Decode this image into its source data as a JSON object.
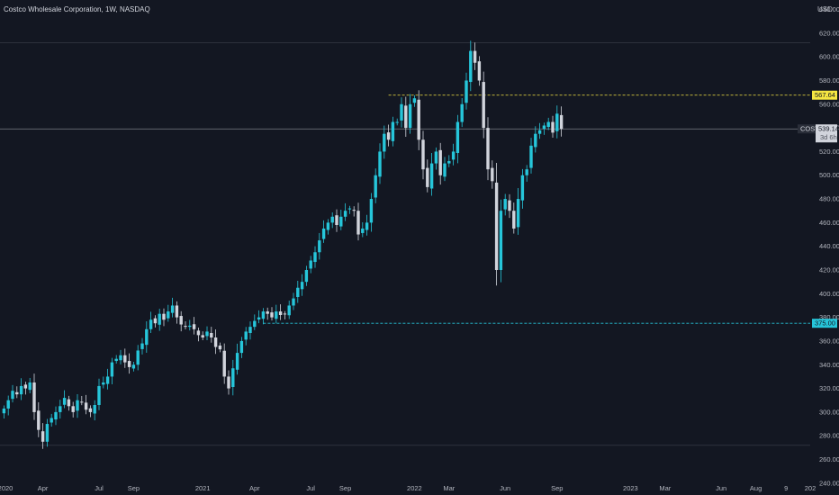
{
  "header": {
    "title": "Costco Wholesale Corporation, 1W, NASDAQ",
    "currency": "USD"
  },
  "colors": {
    "background": "#131722",
    "up": "#26c6da",
    "down": "#d1d4dc",
    "resistance": "#f5e642",
    "support": "#26c6da",
    "text": "#b2b5be",
    "grid_line": "#363a45"
  },
  "price_labels": {
    "resistance": "567.64",
    "support": "375.00",
    "symbol": "COST",
    "last": "539.14",
    "countdown": "3d 6h"
  },
  "chart_data": {
    "type": "candlestick",
    "title": "Costco Wholesale Corporation, 1W, NASDAQ",
    "ylabel": "USD",
    "ylim": [
      230,
      648
    ],
    "y_ticks": [
      240,
      260,
      280,
      300,
      320,
      340,
      360,
      380,
      400,
      420,
      440,
      460,
      480,
      500,
      520,
      540,
      560,
      580,
      600,
      620,
      640
    ],
    "x_ticks": [
      {
        "label": "2020",
        "week": 0
      },
      {
        "label": "Apr",
        "week": 9
      },
      {
        "label": "Jul",
        "week": 22
      },
      {
        "label": "Sep",
        "week": 30
      },
      {
        "label": "2021",
        "week": 46
      },
      {
        "label": "Apr",
        "week": 58
      },
      {
        "label": "Jul",
        "week": 71
      },
      {
        "label": "Sep",
        "week": 79
      },
      {
        "label": "2022",
        "week": 95
      },
      {
        "label": "Mar",
        "week": 103
      },
      {
        "label": "Jun",
        "week": 116
      },
      {
        "label": "Sep",
        "week": 128
      },
      {
        "label": "2023",
        "week": 145
      },
      {
        "label": "Mar",
        "week": 153
      },
      {
        "label": "Jun",
        "week": 166
      },
      {
        "label": "Aug",
        "week": 174
      },
      {
        "label": "9",
        "week": 181
      },
      {
        "label": "202",
        "week": 193
      }
    ],
    "horizontal_lines": [
      {
        "price": 567.64,
        "style": "dashed",
        "color": "#f5e642"
      },
      {
        "price": 375.0,
        "style": "dashed",
        "color": "#26c6da"
      },
      {
        "price": 539.14,
        "style": "solid",
        "color": "#787b86"
      },
      {
        "price": 612,
        "style": "solid",
        "color": "#363a45"
      },
      {
        "price": 272,
        "style": "solid",
        "color": "#363a45"
      }
    ],
    "last_price": 539.14,
    "closes": [
      303,
      310,
      318,
      315,
      322,
      320,
      325,
      300,
      285,
      275,
      290,
      295,
      300,
      305,
      312,
      305,
      300,
      310,
      308,
      302,
      300,
      306,
      322,
      325,
      330,
      342,
      345,
      348,
      342,
      338,
      340,
      352,
      358,
      370,
      378,
      375,
      383,
      378,
      385,
      390,
      380,
      374,
      372,
      373,
      370,
      365,
      363,
      368,
      363,
      355,
      353,
      330,
      320,
      337,
      350,
      360,
      368,
      372,
      377,
      380,
      385,
      383,
      380,
      385,
      382,
      383,
      390,
      396,
      405,
      410,
      420,
      428,
      435,
      445,
      455,
      460,
      465,
      458,
      465,
      470,
      472,
      470,
      450,
      455,
      460,
      480,
      500,
      520,
      535,
      530,
      545,
      545,
      560,
      540,
      560,
      565,
      530,
      505,
      490,
      510,
      520,
      500,
      510,
      512,
      520,
      545,
      560,
      580,
      605,
      595,
      580,
      540,
      505,
      495,
      420,
      470,
      480,
      470,
      455,
      480,
      500,
      505,
      525,
      535,
      538,
      542,
      545,
      536,
      552,
      539.14
    ]
  }
}
